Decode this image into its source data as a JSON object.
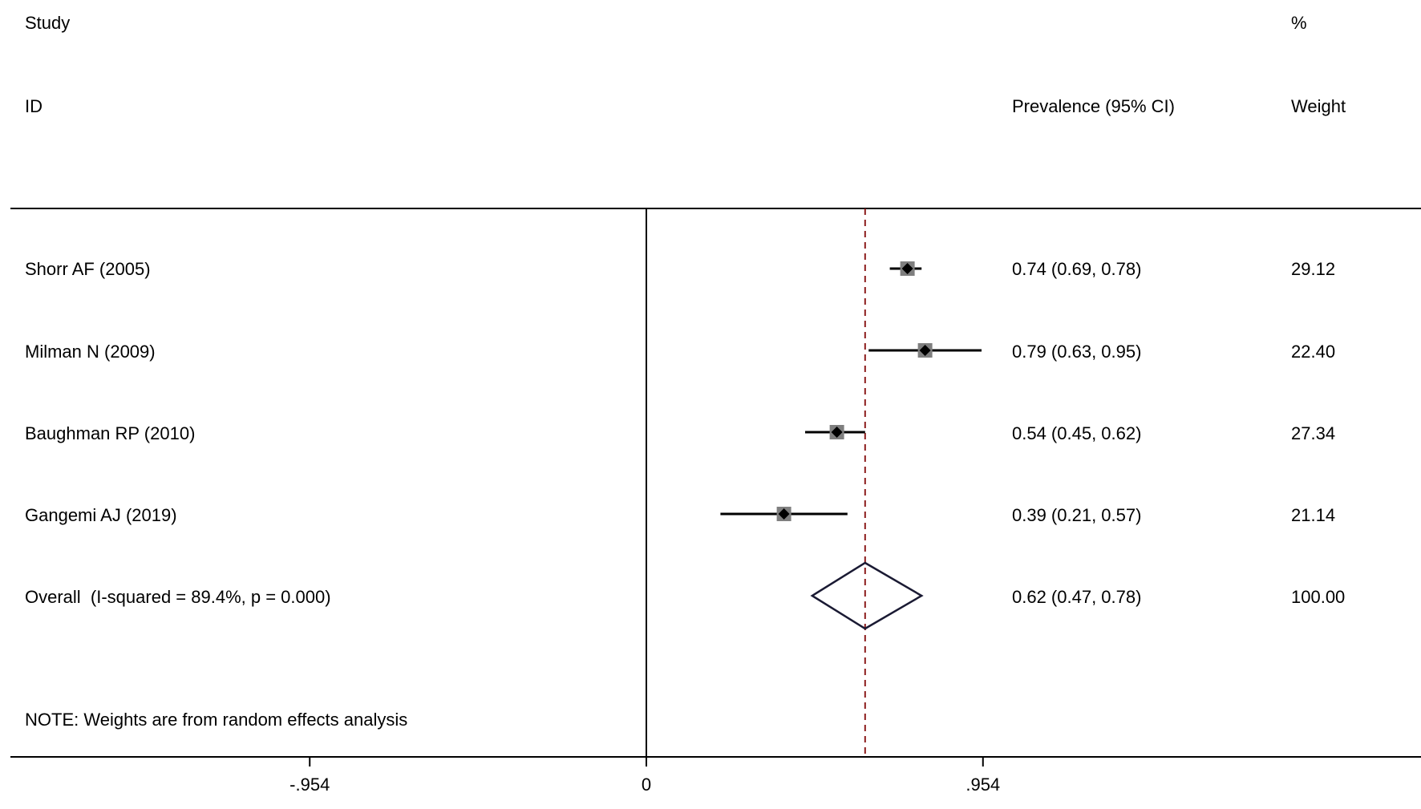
{
  "header": {
    "study": "Study",
    "id": "ID",
    "percent": "%",
    "effect": "Prevalence (95% CI)",
    "weight": "Weight"
  },
  "note": "NOTE: Weights are from random effects analysis",
  "chart_data": {
    "type": "forest",
    "x_ticks": [
      {
        "value": -0.954,
        "label": "-.954"
      },
      {
        "value": 0,
        "label": "0"
      },
      {
        "value": 0.954,
        "label": ".954"
      }
    ],
    "xlim": [
      -1.7,
      2.1
    ],
    "null_line": 0,
    "pooled_line": 0.62,
    "studies": [
      {
        "name": "Shorr AF (2005)",
        "estimate": 0.74,
        "lower": 0.69,
        "upper": 0.78,
        "ci_text": "0.74 (0.69, 0.78)",
        "weight": "29.12"
      },
      {
        "name": "Milman N (2009)",
        "estimate": 0.79,
        "lower": 0.63,
        "upper": 0.95,
        "ci_text": "0.79 (0.63, 0.95)",
        "weight": "22.40"
      },
      {
        "name": "Baughman RP (2010)",
        "estimate": 0.54,
        "lower": 0.45,
        "upper": 0.62,
        "ci_text": "0.54 (0.45, 0.62)",
        "weight": "27.34"
      },
      {
        "name": "Gangemi AJ (2019)",
        "estimate": 0.39,
        "lower": 0.21,
        "upper": 0.57,
        "ci_text": "0.39 (0.21, 0.57)",
        "weight": "21.14"
      }
    ],
    "overall": {
      "label": "Overall  (I-squared = 89.4%, p = 0.000)",
      "estimate": 0.62,
      "lower": 0.47,
      "upper": 0.78,
      "ci_text": "0.62 (0.47, 0.78)",
      "weight": "100.00"
    },
    "colors": {
      "axis": "#000000",
      "box_fill": "#7f7f7f",
      "point": "#000000",
      "pooled_line": "#8b1a1a",
      "diamond": "#1a1a33"
    }
  }
}
